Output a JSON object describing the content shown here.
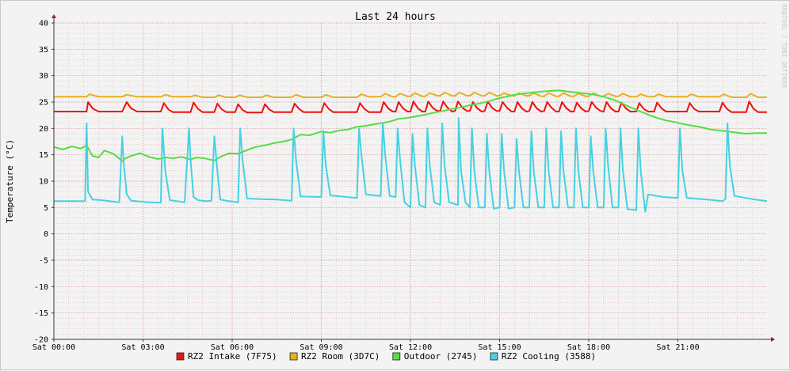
{
  "chart_data": {
    "type": "line",
    "title": "Last 24 hours",
    "ylabel": "Temperature (°C)",
    "watermark": "RRDTOOL / TOBI OETIKER",
    "ylim": [
      -20,
      40
    ],
    "xlim_hours": [
      0,
      24
    ],
    "yticks": [
      40,
      35,
      30,
      25,
      20,
      15,
      10,
      5,
      0,
      -5,
      -10,
      -15,
      -20
    ],
    "xticks": [
      {
        "hour": 0,
        "label": "Sat 00:00"
      },
      {
        "hour": 3,
        "label": "Sat 03:00"
      },
      {
        "hour": 6,
        "label": "Sat 06:00"
      },
      {
        "hour": 9,
        "label": "Sat 09:00"
      },
      {
        "hour": 12,
        "label": "Sat 12:00"
      },
      {
        "hour": 15,
        "label": "Sat 15:00"
      },
      {
        "hour": 18,
        "label": "Sat 18:00"
      },
      {
        "hour": 21,
        "label": "Sat 21:00"
      }
    ],
    "grid": true,
    "legend_position": "bottom",
    "series": [
      {
        "name": "RZ2 Intake (7F75)",
        "color": "#ee1111",
        "x": [
          0,
          1.1,
          1.15,
          1.3,
          1.5,
          2.3,
          2.45,
          2.6,
          2.8,
          3.6,
          3.7,
          3.85,
          4.0,
          4.6,
          4.7,
          4.85,
          5.0,
          5.4,
          5.5,
          5.65,
          5.8,
          6.1,
          6.2,
          6.35,
          6.5,
          7.0,
          7.1,
          7.25,
          7.4,
          8.0,
          8.1,
          8.25,
          8.4,
          9.0,
          9.1,
          9.25,
          9.4,
          10.2,
          10.3,
          10.45,
          10.6,
          11.0,
          11.1,
          11.25,
          11.4,
          11.5,
          11.6,
          11.75,
          11.9,
          12.0,
          12.1,
          12.25,
          12.4,
          12.5,
          12.6,
          12.75,
          12.9,
          13.0,
          13.1,
          13.25,
          13.4,
          13.5,
          13.6,
          13.75,
          13.9,
          14.0,
          14.1,
          14.25,
          14.4,
          14.5,
          14.6,
          14.75,
          14.9,
          15.0,
          15.1,
          15.25,
          15.4,
          15.5,
          15.6,
          15.75,
          15.9,
          16.0,
          16.1,
          16.25,
          16.4,
          16.5,
          16.6,
          16.75,
          16.9,
          17.0,
          17.1,
          17.25,
          17.4,
          17.5,
          17.6,
          17.75,
          17.9,
          18.0,
          18.1,
          18.25,
          18.4,
          18.5,
          18.6,
          18.75,
          18.9,
          19.0,
          19.1,
          19.25,
          19.4,
          19.6,
          19.7,
          19.85,
          20.0,
          20.2,
          20.3,
          20.45,
          20.6,
          21.3,
          21.4,
          21.55,
          21.7,
          22.4,
          22.5,
          22.65,
          22.8,
          23.3,
          23.4,
          23.55,
          23.7,
          24
        ],
        "values": [
          23.2,
          23.2,
          25.0,
          23.8,
          23.2,
          23.2,
          25.0,
          23.8,
          23.2,
          23.2,
          24.8,
          23.6,
          23.1,
          23.1,
          24.9,
          23.7,
          23.1,
          23.1,
          24.7,
          23.6,
          23.1,
          23.1,
          24.6,
          23.5,
          23.0,
          23.0,
          24.6,
          23.6,
          23.1,
          23.1,
          24.7,
          23.7,
          23.1,
          23.1,
          24.8,
          23.7,
          23.1,
          23.1,
          24.8,
          23.7,
          23.1,
          23.1,
          25.0,
          23.8,
          23.2,
          23.2,
          25.0,
          23.8,
          23.2,
          23.2,
          25.1,
          23.8,
          23.2,
          23.2,
          25.1,
          23.9,
          23.3,
          23.3,
          25.1,
          23.9,
          23.2,
          23.3,
          25.1,
          23.9,
          23.3,
          23.3,
          25.0,
          23.8,
          23.2,
          23.3,
          25.1,
          23.9,
          23.3,
          23.3,
          25.0,
          23.9,
          23.2,
          23.2,
          25.0,
          23.8,
          23.2,
          23.3,
          25.0,
          23.8,
          23.2,
          23.3,
          25.0,
          23.9,
          23.2,
          23.2,
          25.0,
          23.8,
          23.2,
          23.2,
          24.9,
          23.8,
          23.2,
          23.3,
          25.0,
          23.9,
          23.3,
          23.2,
          25.0,
          23.8,
          23.2,
          23.2,
          24.9,
          23.8,
          23.2,
          23.2,
          24.8,
          23.7,
          23.2,
          23.2,
          24.9,
          23.8,
          23.2,
          23.2,
          24.8,
          23.7,
          23.2,
          23.2,
          24.9,
          23.7,
          23.1,
          23.1,
          25.1,
          23.7,
          23.1,
          23.1
        ]
      },
      {
        "name": "RZ2 Room (3D7C)",
        "color": "#e6b020",
        "x": [
          0,
          1.1,
          1.2,
          1.5,
          2.3,
          2.45,
          2.8,
          3.6,
          3.75,
          4.0,
          4.6,
          4.75,
          5.0,
          5.4,
          5.55,
          5.8,
          6.1,
          6.25,
          6.5,
          7.0,
          7.15,
          7.4,
          8.0,
          8.15,
          8.4,
          9.0,
          9.15,
          9.4,
          10.2,
          10.35,
          10.6,
          11.0,
          11.15,
          11.4,
          11.5,
          11.65,
          11.9,
          12.0,
          12.15,
          12.4,
          12.5,
          12.65,
          12.9,
          13.0,
          13.15,
          13.4,
          13.5,
          13.65,
          13.9,
          14.0,
          14.15,
          14.4,
          14.5,
          14.65,
          14.9,
          15.0,
          15.15,
          15.4,
          15.5,
          15.65,
          15.9,
          16.0,
          16.15,
          16.4,
          16.5,
          16.65,
          16.9,
          17.0,
          17.15,
          17.4,
          17.5,
          17.65,
          17.9,
          18.0,
          18.15,
          18.4,
          18.5,
          18.65,
          18.9,
          19.0,
          19.15,
          19.4,
          19.6,
          19.75,
          20.0,
          20.2,
          20.35,
          20.6,
          21.3,
          21.45,
          21.7,
          22.4,
          22.55,
          22.8,
          23.3,
          23.45,
          23.7,
          24
        ],
        "values": [
          26.0,
          26.0,
          26.5,
          26.0,
          26.0,
          26.4,
          26.0,
          26.0,
          26.4,
          26.0,
          26.0,
          26.3,
          25.9,
          25.9,
          26.3,
          25.9,
          25.9,
          26.3,
          25.9,
          25.9,
          26.3,
          25.9,
          25.9,
          26.4,
          25.9,
          25.9,
          26.4,
          25.9,
          25.9,
          26.5,
          26.0,
          26.0,
          26.6,
          26.0,
          26.0,
          26.6,
          26.1,
          26.1,
          26.7,
          26.1,
          26.1,
          26.7,
          26.2,
          26.2,
          26.8,
          26.2,
          26.2,
          26.8,
          26.2,
          26.2,
          26.8,
          26.2,
          26.2,
          26.8,
          26.2,
          26.2,
          26.7,
          26.2,
          26.2,
          26.7,
          26.2,
          26.2,
          26.7,
          26.1,
          26.1,
          26.7,
          26.1,
          26.1,
          26.7,
          26.1,
          26.1,
          26.6,
          26.1,
          26.1,
          26.7,
          26.1,
          26.1,
          26.6,
          26.1,
          26.1,
          26.6,
          26.0,
          26.0,
          26.5,
          26.0,
          26.0,
          26.5,
          26.0,
          26.0,
          26.5,
          26.0,
          26.0,
          26.5,
          25.9,
          25.9,
          26.6,
          25.9,
          25.9
        ]
      },
      {
        "name": "Outdoor (2745)",
        "color": "#55dd44",
        "x": [
          0,
          0.3,
          0.6,
          0.9,
          1.1,
          1.3,
          1.5,
          1.7,
          2.0,
          2.3,
          2.4,
          2.6,
          2.9,
          3.2,
          3.5,
          3.8,
          4.0,
          4.3,
          4.6,
          4.8,
          5.1,
          5.4,
          5.6,
          5.9,
          6.2,
          6.5,
          6.8,
          7.1,
          7.4,
          7.7,
          8.0,
          8.3,
          8.6,
          9.0,
          9.3,
          9.6,
          9.9,
          10.2,
          10.5,
          10.8,
          11.0,
          11.3,
          11.6,
          11.9,
          12.2,
          12.5,
          12.8,
          13.1,
          13.4,
          13.7,
          14.0,
          14.3,
          14.6,
          14.9,
          15.2,
          15.5,
          15.8,
          16.1,
          16.4,
          16.7,
          17.0,
          17.3,
          17.6,
          17.9,
          18.2,
          18.5,
          18.8,
          19.1,
          19.4,
          19.7,
          20.0,
          20.3,
          20.6,
          20.9,
          21.2,
          21.5,
          21.8,
          22.1,
          22.4,
          22.7,
          23.0,
          23.3,
          23.6,
          24
        ],
        "values": [
          16.5,
          16.0,
          16.6,
          16.2,
          16.8,
          14.8,
          14.5,
          15.8,
          15.2,
          13.8,
          14.3,
          14.8,
          15.3,
          14.6,
          14.2,
          14.5,
          14.3,
          14.6,
          14.1,
          14.5,
          14.3,
          13.9,
          14.6,
          15.3,
          15.2,
          15.9,
          16.5,
          16.8,
          17.2,
          17.5,
          17.9,
          18.8,
          18.7,
          19.4,
          19.2,
          19.6,
          19.8,
          20.3,
          20.5,
          20.8,
          21.0,
          21.3,
          21.8,
          22.0,
          22.3,
          22.6,
          23.0,
          23.3,
          23.7,
          24.0,
          24.4,
          24.7,
          25.1,
          25.6,
          26.0,
          26.4,
          26.6,
          26.8,
          27.0,
          27.1,
          27.2,
          27.0,
          26.8,
          26.6,
          26.4,
          26.0,
          25.5,
          24.8,
          24.0,
          23.3,
          22.6,
          22.0,
          21.5,
          21.2,
          20.8,
          20.5,
          20.2,
          19.8,
          19.6,
          19.4,
          19.2,
          19.0,
          19.1,
          19.1
        ]
      },
      {
        "name": "RZ2 Cooling (3588)",
        "color": "#44d2e2",
        "x": [
          0,
          1.05,
          1.1,
          1.15,
          1.3,
          1.6,
          2.2,
          2.3,
          2.35,
          2.45,
          2.6,
          3.2,
          3.6,
          3.65,
          3.75,
          3.9,
          4.4,
          4.55,
          4.6,
          4.7,
          4.85,
          5.1,
          5.3,
          5.4,
          5.5,
          5.6,
          5.9,
          6.2,
          6.27,
          6.35,
          6.5,
          7.0,
          7.5,
          8.0,
          8.07,
          8.15,
          8.3,
          9.0,
          9.07,
          9.15,
          9.3,
          10.2,
          10.27,
          10.35,
          10.5,
          11.0,
          11.07,
          11.15,
          11.3,
          11.5,
          11.57,
          11.65,
          11.8,
          12.0,
          12.07,
          12.15,
          12.3,
          12.5,
          12.57,
          12.65,
          12.8,
          13.0,
          13.07,
          13.15,
          13.3,
          13.6,
          13.62,
          13.7,
          13.85,
          14.0,
          14.07,
          14.15,
          14.3,
          14.5,
          14.57,
          14.65,
          14.8,
          15.0,
          15.07,
          15.15,
          15.3,
          15.5,
          15.57,
          15.65,
          15.8,
          16.0,
          16.07,
          16.15,
          16.3,
          16.5,
          16.57,
          16.65,
          16.8,
          17.0,
          17.07,
          17.15,
          17.3,
          17.5,
          17.57,
          17.65,
          17.8,
          18.0,
          18.07,
          18.15,
          18.3,
          18.5,
          18.57,
          18.65,
          18.8,
          19.0,
          19.07,
          19.15,
          19.3,
          19.6,
          19.67,
          19.75,
          19.9,
          20.0,
          20.5,
          21.0,
          21.07,
          21.15,
          21.3,
          22.0,
          22.5,
          22.6,
          22.67,
          22.75,
          22.9,
          23.5,
          24
        ],
        "values": [
          6.2,
          6.2,
          21.0,
          8.0,
          6.5,
          6.4,
          6.0,
          18.5,
          13.5,
          7.5,
          6.3,
          6.0,
          5.9,
          20.0,
          12.0,
          6.4,
          6.0,
          20.0,
          14.0,
          7.0,
          6.4,
          6.2,
          6.3,
          18.5,
          12.0,
          6.5,
          6.2,
          6.0,
          20.0,
          14.0,
          6.7,
          6.6,
          6.5,
          6.3,
          20.0,
          14.0,
          7.1,
          7.0,
          19.5,
          13.0,
          7.3,
          6.8,
          20.0,
          15.0,
          7.5,
          7.2,
          21.0,
          15.0,
          7.2,
          7.0,
          20.0,
          14.0,
          6.0,
          5.0,
          19.0,
          13.0,
          5.5,
          5.0,
          20.0,
          13.0,
          6.0,
          5.5,
          21.0,
          13.0,
          6.0,
          5.5,
          22.0,
          12.0,
          6.0,
          5.0,
          20.0,
          12.0,
          5.0,
          5.0,
          19.0,
          12.0,
          4.8,
          5.0,
          19.0,
          12.0,
          4.8,
          5.0,
          18.0,
          12.0,
          5.0,
          5.0,
          19.5,
          12.0,
          5.0,
          5.0,
          20.0,
          12.0,
          5.0,
          5.0,
          19.5,
          12.0,
          5.0,
          5.0,
          20.0,
          12.0,
          5.0,
          5.0,
          18.5,
          12.0,
          5.0,
          5.0,
          20.0,
          13.0,
          5.0,
          5.0,
          20.0,
          12.0,
          4.7,
          4.5,
          20.0,
          12.0,
          4.2,
          7.5,
          7.0,
          6.8,
          20.0,
          12.0,
          6.8,
          6.5,
          6.2,
          6.6,
          21.0,
          13.0,
          7.2,
          6.6,
          6.2
        ]
      }
    ]
  }
}
